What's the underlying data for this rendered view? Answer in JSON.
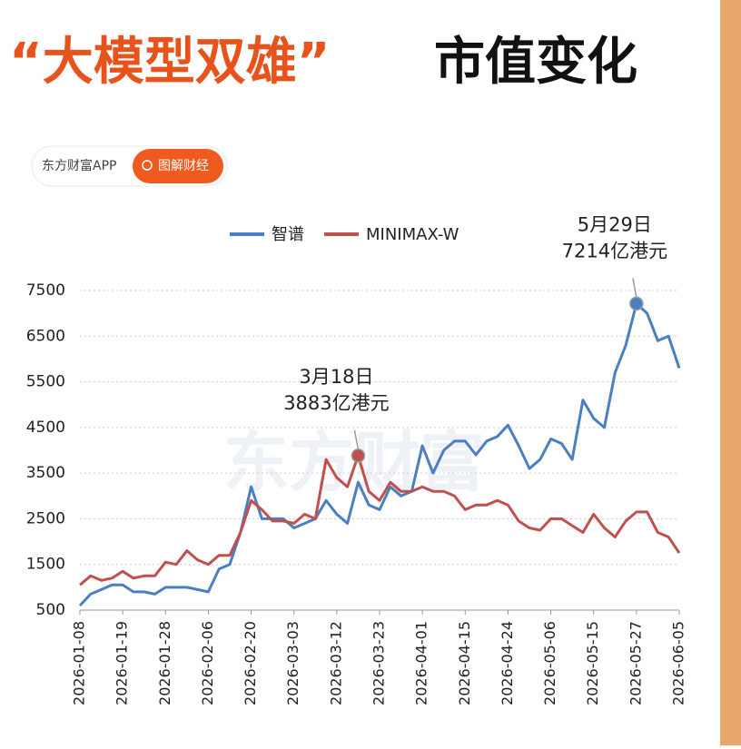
{
  "chart_data": {
    "type": "line",
    "title_part1": "“大模型双雄”",
    "title_part2": "市值变化",
    "badge_app": "东方财富APP",
    "badge_button": "图解财经",
    "watermark": "东方财富",
    "categories": [
      "2026-01-08",
      null,
      null,
      null,
      "2026-01-19",
      null,
      null,
      null,
      "2026-01-28",
      null,
      null,
      null,
      "2026-02-06",
      null,
      null,
      null,
      "2026-02-20",
      null,
      null,
      null,
      "2026-03-03",
      null,
      null,
      null,
      "2026-03-12",
      null,
      null,
      null,
      "2026-03-23",
      null,
      null,
      null,
      "2026-04-01",
      null,
      null,
      null,
      "2026-04-15",
      null,
      null,
      null,
      "2026-04-24",
      null,
      null,
      null,
      "2026-05-06",
      null,
      null,
      null,
      "2026-05-15",
      null,
      null,
      null,
      "2026-05-27",
      null,
      null,
      null,
      "2026-06-05"
    ],
    "series": [
      {
        "name": "智谱",
        "color": "#4a7fc1",
        "values": [
          600,
          850,
          950,
          1050,
          1050,
          900,
          900,
          850,
          1000,
          1000,
          1000,
          950,
          900,
          1400,
          1500,
          2200,
          3200,
          2500,
          2500,
          2500,
          2300,
          2400,
          2500,
          2900,
          2600,
          2400,
          3300,
          2800,
          2700,
          3200,
          3000,
          3100,
          4100,
          3500,
          4000,
          4200,
          4200,
          3900,
          4200,
          4300,
          4550,
          4100,
          3600,
          3800,
          4250,
          4150,
          3800,
          5100,
          4700,
          4500,
          5700,
          6300,
          7214,
          7000,
          6400,
          6500,
          5800
        ]
      },
      {
        "name": "MINIMAX-W",
        "color": "#c0504d",
        "values": [
          1050,
          1250,
          1150,
          1200,
          1350,
          1200,
          1250,
          1250,
          1550,
          1500,
          1800,
          1600,
          1500,
          1700,
          1700,
          2200,
          2900,
          2700,
          2450,
          2450,
          2400,
          2600,
          2500,
          3800,
          3400,
          3200,
          3883,
          3100,
          2900,
          3300,
          3100,
          3100,
          3200,
          3100,
          3100,
          3000,
          2700,
          2800,
          2800,
          2900,
          2800,
          2450,
          2300,
          2250,
          2500,
          2500,
          2350,
          2200,
          2600,
          2300,
          2100,
          2450,
          2650,
          2650,
          2200,
          2100,
          1750
        ]
      }
    ],
    "ylim": [
      500,
      7500
    ],
    "yticks": [
      500,
      1500,
      2500,
      3500,
      4500,
      5500,
      6500,
      7500
    ],
    "grid": true,
    "annotations": [
      {
        "series": 1,
        "index": 26,
        "lines": [
          "3月18日",
          "3883亿港元"
        ]
      },
      {
        "series": 0,
        "index": 52,
        "lines": [
          "5月29日",
          "7214亿港元"
        ]
      }
    ]
  }
}
